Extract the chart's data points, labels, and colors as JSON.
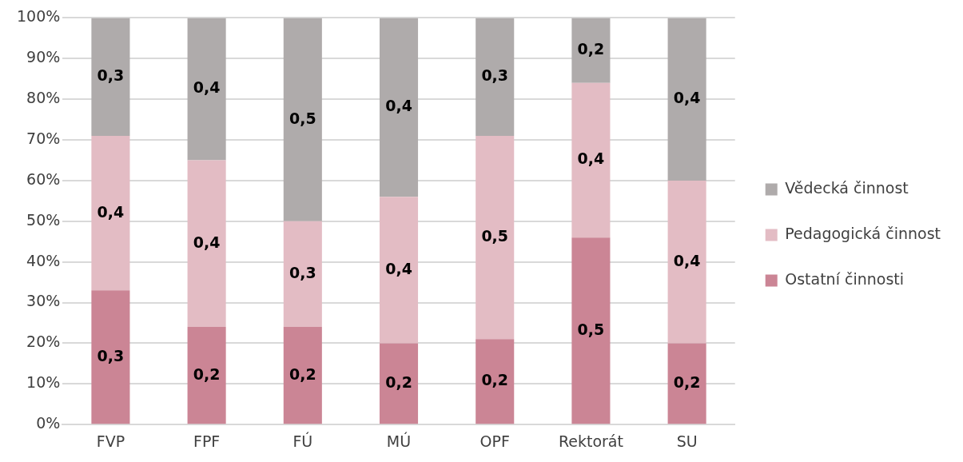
{
  "chart_data": {
    "type": "bar",
    "stacked": true,
    "categories": [
      "FVP",
      "FPF",
      "FÚ",
      "MÚ",
      "OPF",
      "Rektorát",
      "SU"
    ],
    "series": [
      {
        "name": "Ostatní činnosti",
        "color": "#cb8595",
        "values": [
          0.33,
          0.24,
          0.24,
          0.2,
          0.21,
          0.46,
          0.2
        ],
        "value_labels": [
          "0,3",
          "0,2",
          "0,2",
          "0,2",
          "0,2",
          "0,5",
          "0,2"
        ]
      },
      {
        "name": "Pedagogická činnost",
        "color": "#e3bcc4",
        "values": [
          0.38,
          0.41,
          0.26,
          0.36,
          0.5,
          0.38,
          0.4
        ],
        "value_labels": [
          "0,4",
          "0,4",
          "0,3",
          "0,4",
          "0,5",
          "0,4",
          "0,4"
        ]
      },
      {
        "name": "Vědecká činnost",
        "color": "#afabab",
        "values": [
          0.29,
          0.35,
          0.5,
          0.44,
          0.29,
          0.16,
          0.4
        ],
        "value_labels": [
          "0,3",
          "0,4",
          "0,5",
          "0,4",
          "0,3",
          "0,2",
          "0,4"
        ]
      }
    ],
    "ylim": [
      0,
      1
    ],
    "yticks": [
      {
        "value": 0,
        "label": "0%"
      },
      {
        "value": 0.1,
        "label": "10%"
      },
      {
        "value": 0.2,
        "label": "20%"
      },
      {
        "value": 0.3,
        "label": "30%"
      },
      {
        "value": 0.4,
        "label": "40%"
      },
      {
        "value": 0.5,
        "label": "50%"
      },
      {
        "value": 0.6,
        "label": "60%"
      },
      {
        "value": 0.7,
        "label": "70%"
      },
      {
        "value": 0.8,
        "label": "80%"
      },
      {
        "value": 0.9,
        "label": "90%"
      },
      {
        "value": 1,
        "label": "100%"
      }
    ],
    "grid": "y",
    "legend": "right"
  }
}
